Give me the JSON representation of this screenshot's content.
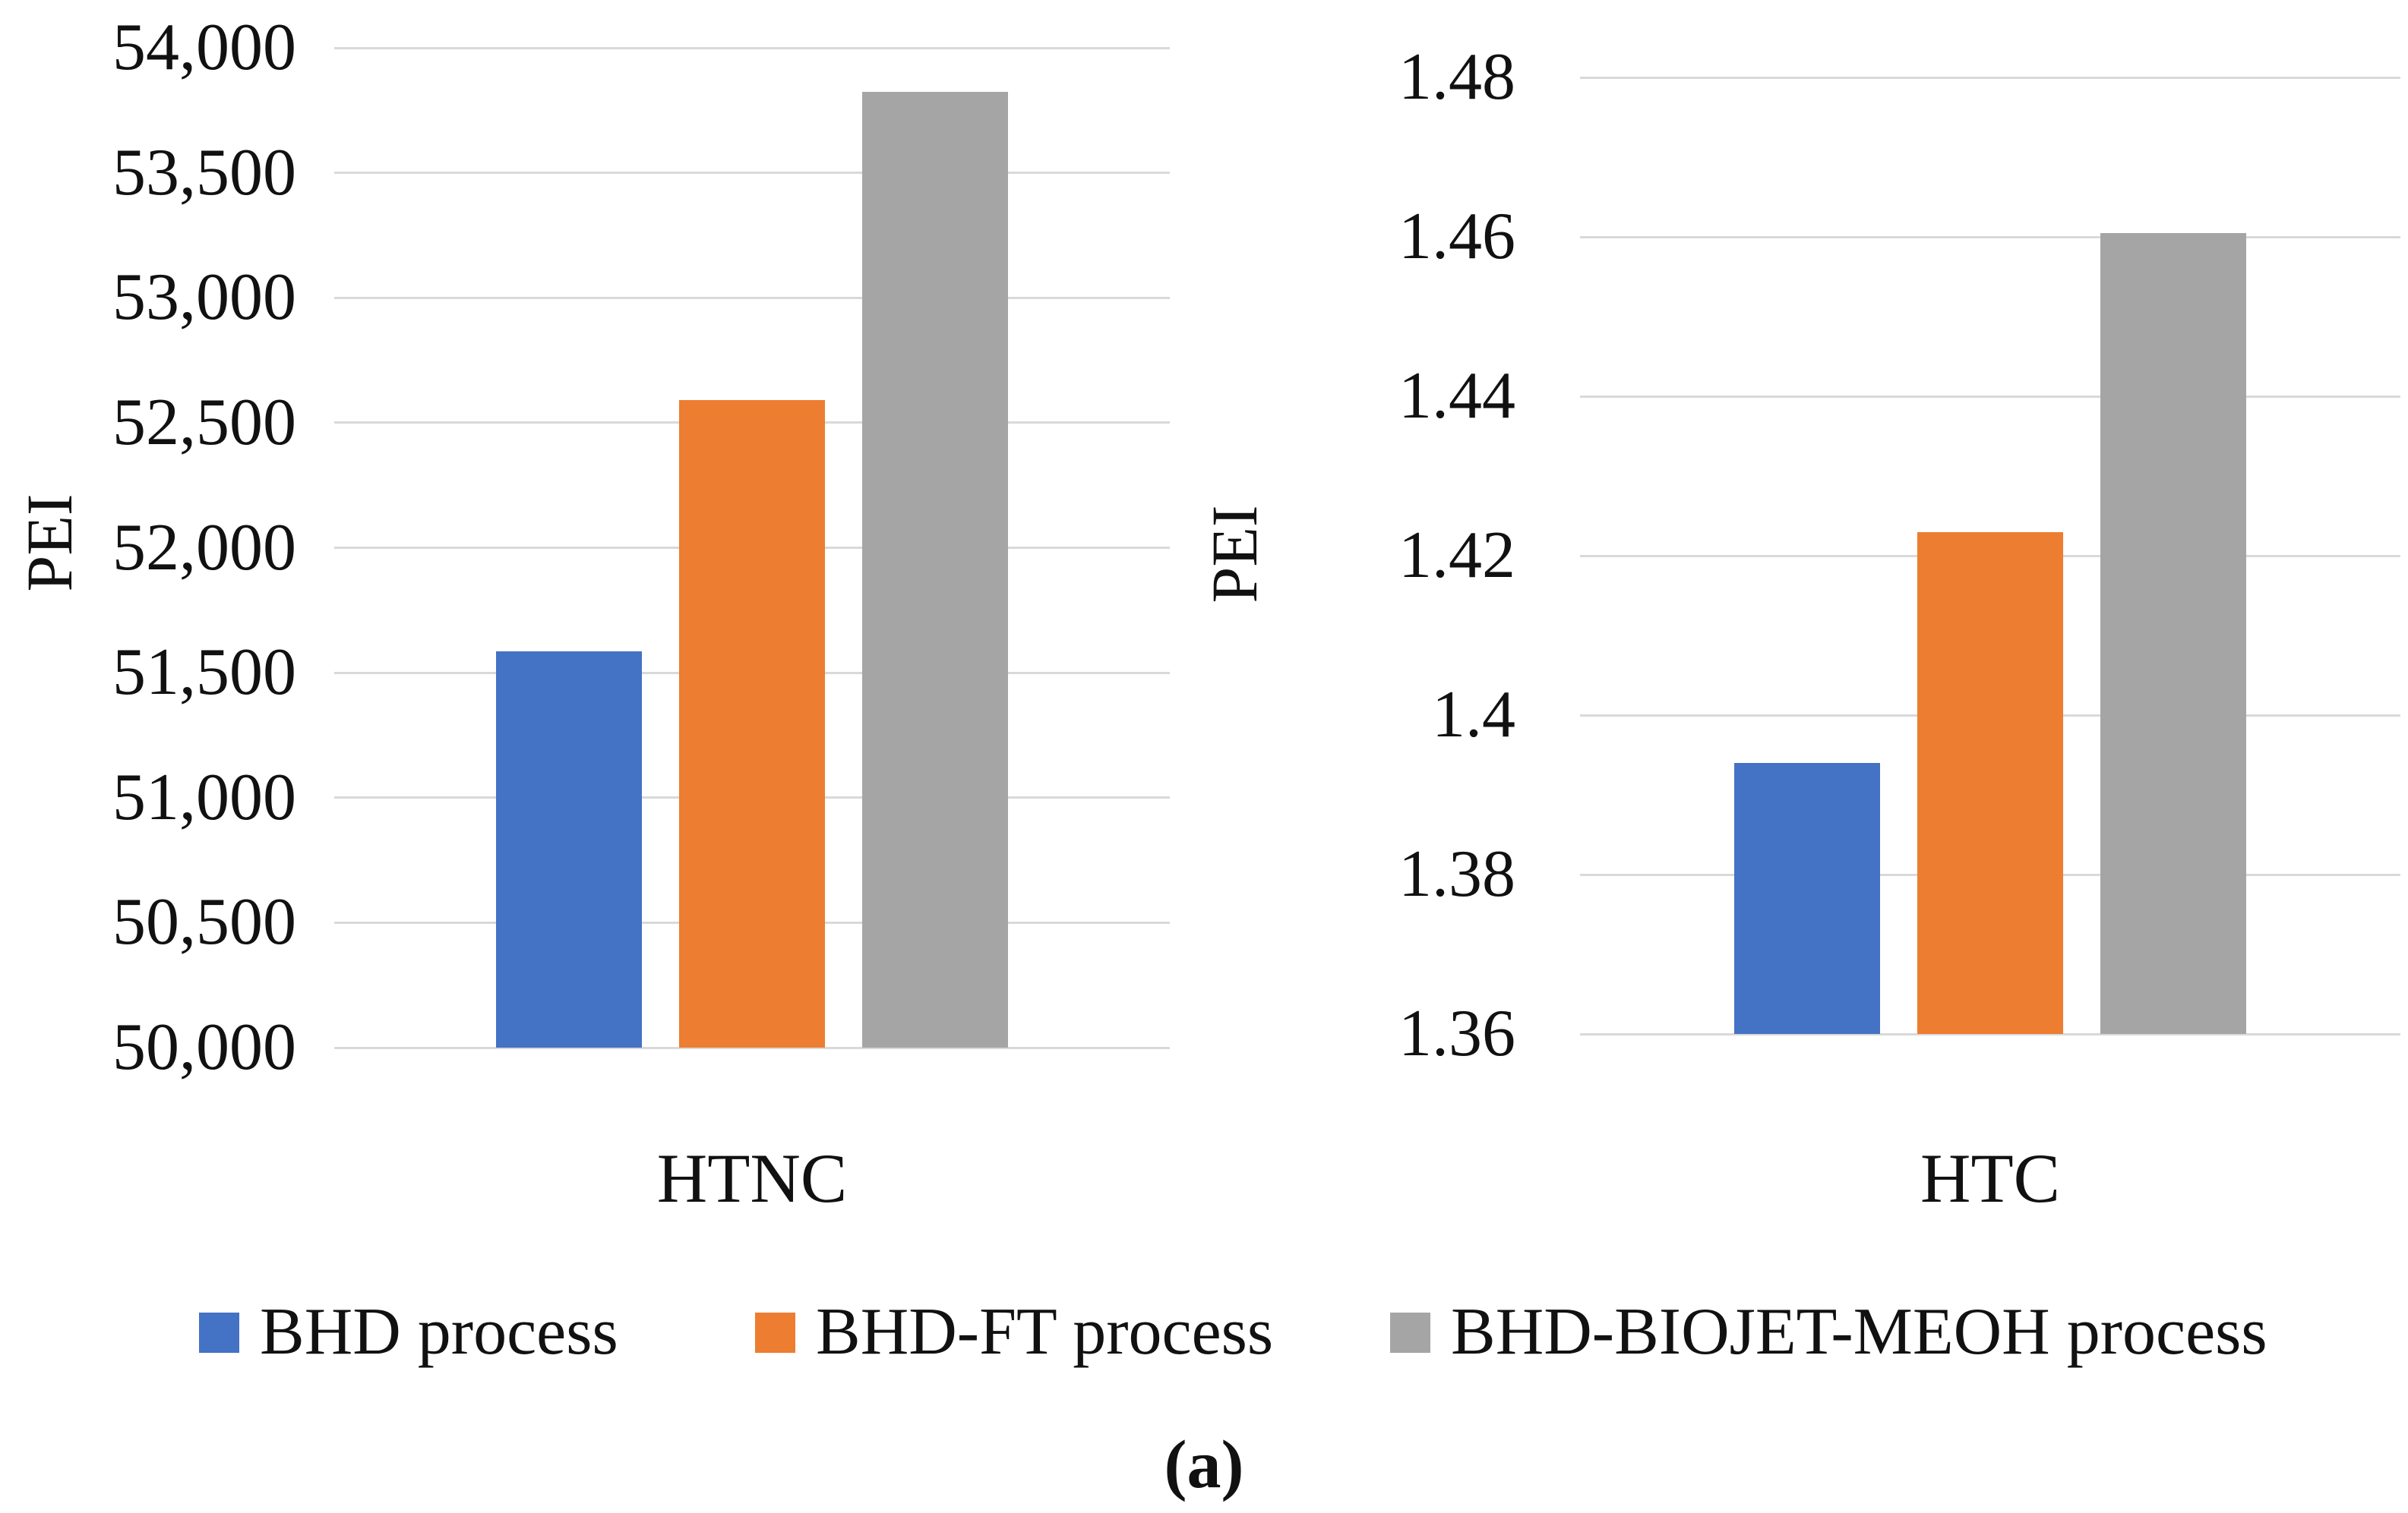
{
  "caption": "(a)",
  "colors": {
    "bar_blue": "#4472C4",
    "bar_orange": "#ED7D31",
    "bar_gray": "#A5A5A5",
    "gridline": "#D9D9D9",
    "text": "#111111"
  },
  "legend": [
    {
      "label": "BHD process",
      "color": "#4472C4"
    },
    {
      "label": "BHD-FT process",
      "color": "#ED7D31"
    },
    {
      "label": "BHD-BIOJET-MEOH process",
      "color": "#A5A5A5"
    }
  ],
  "chart_data": [
    {
      "type": "bar",
      "title": "",
      "categories": [
        "HTNC"
      ],
      "xlabel": "",
      "ylabel": "PEI",
      "ylim": [
        50000,
        54000
      ],
      "ytick_step": 500,
      "ytick_labels": [
        "54,000",
        "53,500",
        "53,000",
        "52,500",
        "52,000",
        "51,500",
        "51,000",
        "50,500",
        "50,000"
      ],
      "grid": true,
      "legend_position": "bottom",
      "series": [
        {
          "name": "BHD process",
          "color": "#4472C4",
          "values": [
            51585
          ]
        },
        {
          "name": "BHD-FT process",
          "color": "#ED7D31",
          "values": [
            52590
          ]
        },
        {
          "name": "BHD-BIOJET-MEOH process",
          "color": "#A5A5A5",
          "values": [
            53825
          ]
        }
      ]
    },
    {
      "type": "bar",
      "title": "",
      "categories": [
        "HTC"
      ],
      "xlabel": "",
      "ylabel": "PEI",
      "ylim": [
        1.36,
        1.48
      ],
      "ytick_step": 0.02,
      "ytick_labels": [
        "1.48",
        "1.46",
        "1.44",
        "1.42",
        "1.4",
        "1.38",
        "1.36"
      ],
      "grid": true,
      "legend_position": "bottom",
      "series": [
        {
          "name": "BHD process",
          "color": "#4472C4",
          "values": [
            1.394
          ]
        },
        {
          "name": "BHD-FT process",
          "color": "#ED7D31",
          "values": [
            1.423
          ]
        },
        {
          "name": "BHD-BIOJET-MEOH process",
          "color": "#A5A5A5",
          "values": [
            1.4605
          ]
        }
      ]
    }
  ]
}
